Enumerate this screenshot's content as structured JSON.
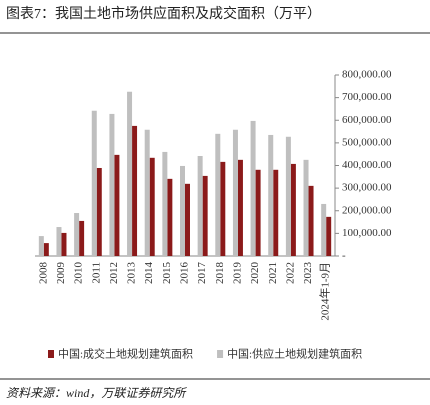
{
  "chart_data": {
    "type": "bar",
    "title": "图表7：我国土地市场供应面积及成交面积（万平）",
    "source": "资料来源：wind，万联证券研究所",
    "categories": [
      "2008",
      "2009",
      "2010",
      "2011",
      "2012",
      "2013",
      "2014",
      "2015",
      "2016",
      "2017",
      "2018",
      "2019",
      "2020",
      "2021",
      "2022",
      "2023",
      "2024年1-9月"
    ],
    "series": [
      {
        "name": "中国:成交土地规划建筑面积",
        "color": "#8b1a1a",
        "values": [
          57000,
          102000,
          155000,
          389000,
          447000,
          575000,
          434000,
          341000,
          319000,
          354000,
          416000,
          425000,
          381000,
          381000,
          407000,
          310000,
          173000
        ]
      },
      {
        "name": "中国:供应土地规划建筑面积",
        "color": "#bfbfbf",
        "values": [
          88000,
          128000,
          190000,
          642000,
          628000,
          726000,
          558000,
          460000,
          398000,
          442000,
          540000,
          558000,
          597000,
          535000,
          527000,
          425000,
          230000
        ]
      }
    ],
    "ylim": [
      0,
      800000
    ],
    "yticks": [
      {
        "value": 0,
        "label": "-"
      },
      {
        "value": 100000,
        "label": "100,000.00"
      },
      {
        "value": 200000,
        "label": "200,000.00"
      },
      {
        "value": 300000,
        "label": "300,000.00"
      },
      {
        "value": 400000,
        "label": "400,000.00"
      },
      {
        "value": 500000,
        "label": "500,000.00"
      },
      {
        "value": 600000,
        "label": "600,000.00"
      },
      {
        "value": 700000,
        "label": "700,000.00"
      },
      {
        "value": 800000,
        "label": "800,000.00"
      }
    ],
    "grid": false
  }
}
